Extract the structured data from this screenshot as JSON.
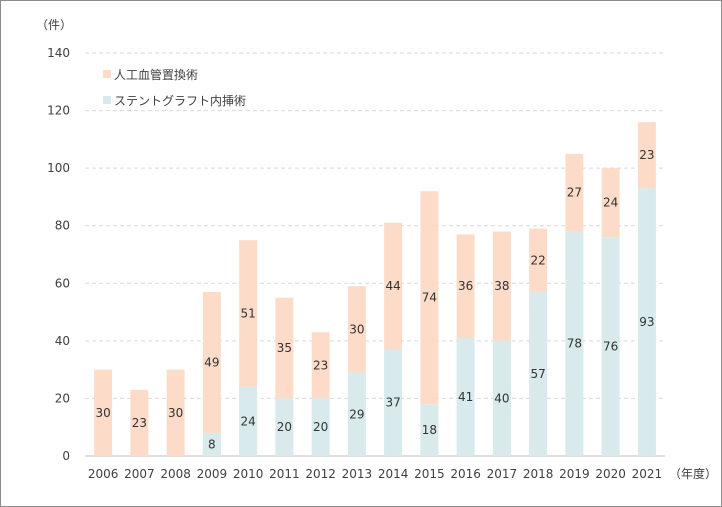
{
  "chart_data": {
    "type": "bar",
    "stacked": true,
    "y_unit_label": "（件）",
    "x_unit_label": "（年度）",
    "ylim": [
      0,
      140
    ],
    "y_ticks": [
      0,
      20,
      40,
      60,
      80,
      100,
      120,
      140
    ],
    "grid": true,
    "legend_position": "top-left",
    "categories": [
      "2006",
      "2007",
      "2008",
      "2009",
      "2010",
      "2011",
      "2012",
      "2013",
      "2014",
      "2015",
      "2016",
      "2017",
      "2018",
      "2019",
      "2020",
      "2021"
    ],
    "series": [
      {
        "name": "ステントグラフト内挿術",
        "color": "#d8eaec",
        "values": [
          0,
          0,
          0,
          8,
          24,
          20,
          20,
          29,
          37,
          18,
          41,
          40,
          57,
          78,
          76,
          93
        ]
      },
      {
        "name": "人工血管置換術",
        "color": "#fcdcc9",
        "values": [
          30,
          23,
          30,
          49,
          51,
          35,
          23,
          30,
          44,
          74,
          36,
          38,
          22,
          27,
          24,
          23
        ]
      }
    ]
  }
}
